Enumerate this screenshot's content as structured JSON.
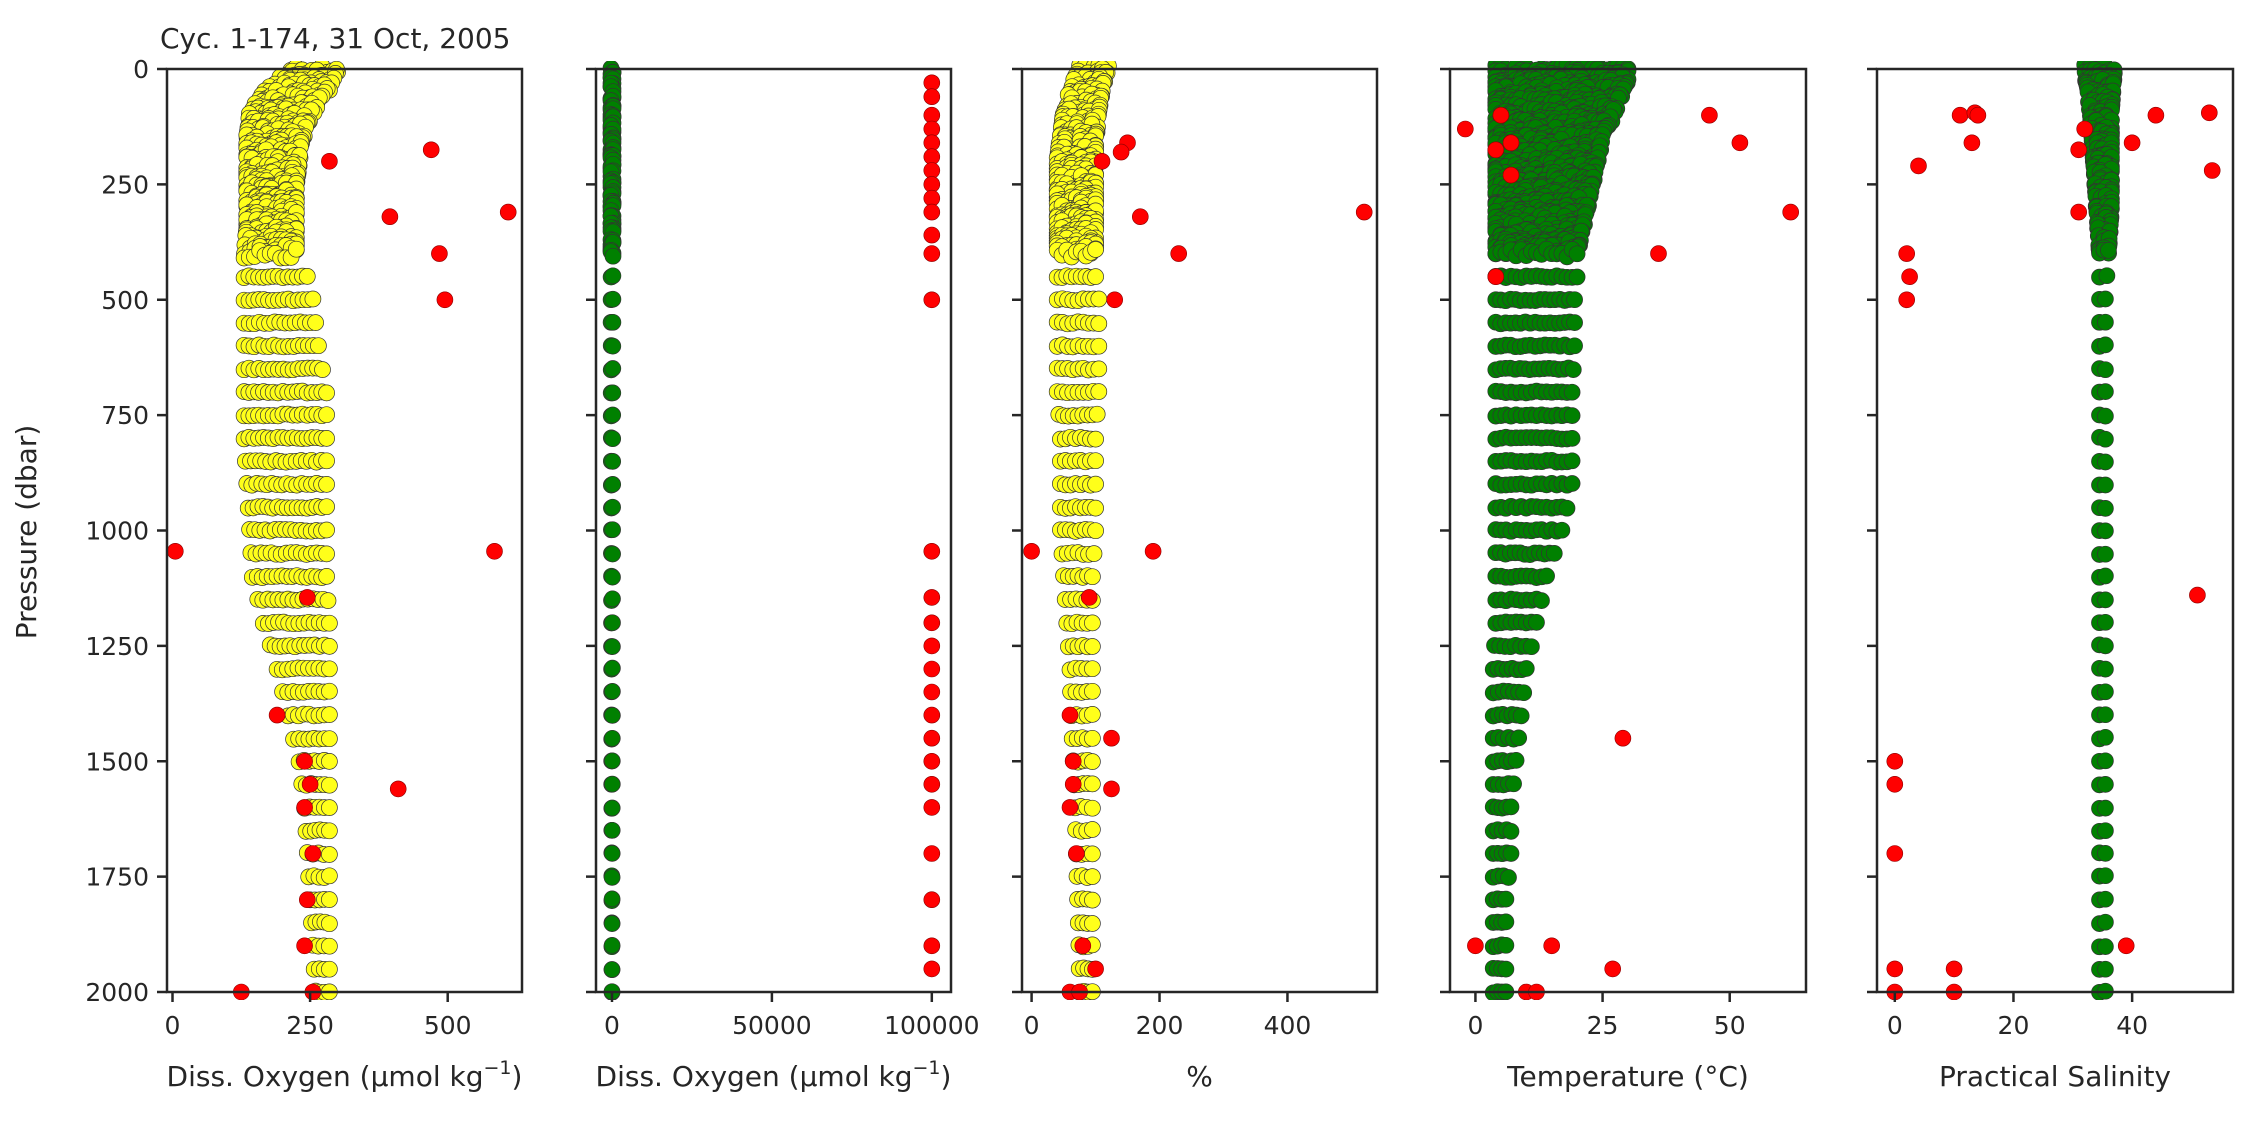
{
  "figure": {
    "title": "Cyc. 1-174, 31 Oct, 2005",
    "ylabel": "Pressure (dbar)",
    "y_ticks": [
      0,
      250,
      500,
      750,
      1000,
      1250,
      1500,
      1750,
      2000
    ],
    "y_tick_labels": [
      "0",
      "250",
      "500",
      "750",
      "1000",
      "1250",
      "1500",
      "1750",
      "2000"
    ]
  },
  "chart_data": [
    {
      "type": "scatter",
      "xlabel_main": "Diss. Oxygen (µmol kg",
      "xlabel_sup": "−1",
      "xlabel_tail": ")",
      "xlim": [
        -10,
        635
      ],
      "ylim": [
        2000,
        0
      ],
      "x_ticks": [
        0,
        250,
        500
      ],
      "x_tick_labels": [
        "0",
        "250",
        "500"
      ],
      "colors": {
        "good": "#ffff1a",
        "bad": "#ff0000"
      },
      "good_profile": {
        "depths": [
          0,
          20,
          50,
          100,
          150,
          200,
          250,
          300,
          350,
          400,
          450,
          500,
          600,
          700,
          800,
          900,
          1000,
          1100,
          1200,
          1300,
          1400,
          1500,
          1600,
          1700,
          1800,
          1900,
          2000
        ],
        "x_min": [
          215,
          200,
          165,
          140,
          135,
          135,
          135,
          135,
          135,
          130,
          130,
          130,
          130,
          130,
          130,
          135,
          140,
          145,
          165,
          190,
          210,
          230,
          240,
          245,
          250,
          255,
          260
        ],
        "x_max": [
          300,
          295,
          280,
          250,
          235,
          230,
          225,
          225,
          225,
          225,
          245,
          255,
          265,
          280,
          280,
          280,
          280,
          280,
          285,
          285,
          285,
          285,
          285,
          285,
          285,
          285,
          285
        ]
      },
      "bad_points": [
        [
          285,
          200
        ],
        [
          470,
          175
        ],
        [
          395,
          320
        ],
        [
          610,
          310
        ],
        [
          485,
          400
        ],
        [
          495,
          500
        ],
        [
          5,
          1045
        ],
        [
          585,
          1045
        ],
        [
          245,
          1145
        ],
        [
          190,
          1400
        ],
        [
          240,
          1500
        ],
        [
          410,
          1560
        ],
        [
          250,
          1550
        ],
        [
          240,
          1600
        ],
        [
          255,
          1700
        ],
        [
          245,
          1800
        ],
        [
          240,
          1900
        ],
        [
          125,
          2000
        ],
        [
          255,
          2000
        ]
      ]
    },
    {
      "type": "scatter",
      "xlabel_main": "Diss. Oxygen (µmol kg",
      "xlabel_sup": "−1",
      "xlabel_tail": ")",
      "xlim": [
        -5000,
        106000
      ],
      "ylim": [
        2000,
        0
      ],
      "x_ticks": [
        0,
        50000,
        100000
      ],
      "x_tick_labels": [
        "0",
        "50000",
        "100000"
      ],
      "colors": {
        "good": "#008000",
        "bad": "#ff0000"
      },
      "good_profile": {
        "depths": [
          0,
          400,
          2000
        ],
        "x_min": [
          -300,
          -300,
          0
        ],
        "x_max": [
          300,
          300,
          0
        ]
      },
      "bad_points": [
        [
          100000,
          30
        ],
        [
          100000,
          60
        ],
        [
          100000,
          100
        ],
        [
          100000,
          130
        ],
        [
          100000,
          160
        ],
        [
          100000,
          190
        ],
        [
          100000,
          220
        ],
        [
          100000,
          250
        ],
        [
          100000,
          280
        ],
        [
          100000,
          310
        ],
        [
          100000,
          360
        ],
        [
          100000,
          400
        ],
        [
          100000,
          500
        ],
        [
          100000,
          1045
        ],
        [
          100000,
          1145
        ],
        [
          100000,
          1200
        ],
        [
          100000,
          1250
        ],
        [
          100000,
          1300
        ],
        [
          100000,
          1350
        ],
        [
          100000,
          1400
        ],
        [
          100000,
          1450
        ],
        [
          100000,
          1500
        ],
        [
          100000,
          1550
        ],
        [
          100000,
          1600
        ],
        [
          100000,
          1700
        ],
        [
          100000,
          1800
        ],
        [
          100000,
          1900
        ],
        [
          100000,
          1950
        ]
      ]
    },
    {
      "type": "scatter",
      "xlabel_main": "%",
      "xlim": [
        -15,
        540
      ],
      "ylim": [
        2000,
        0
      ],
      "x_ticks": [
        0,
        200,
        400
      ],
      "x_tick_labels": [
        "0",
        "200",
        "400"
      ],
      "colors": {
        "good": "#ffff1a",
        "bad": "#ff0000"
      },
      "good_profile": {
        "depths": [
          0,
          20,
          50,
          100,
          150,
          200,
          250,
          300,
          350,
          400,
          450,
          500,
          600,
          700,
          800,
          900,
          1000,
          1100,
          1200,
          1300,
          1400,
          1500,
          1600,
          1700,
          1800,
          1900,
          2000
        ],
        "x_min": [
          75,
          70,
          60,
          50,
          45,
          40,
          40,
          40,
          40,
          40,
          40,
          40,
          40,
          40,
          45,
          45,
          45,
          50,
          55,
          60,
          62,
          65,
          68,
          70,
          72,
          74,
          75
        ],
        "x_max": [
          120,
          115,
          110,
          105,
          100,
          100,
          100,
          100,
          100,
          100,
          100,
          105,
          105,
          105,
          100,
          100,
          100,
          95,
          95,
          95,
          95,
          95,
          95,
          95,
          95,
          95,
          95
        ]
      },
      "bad_points": [
        [
          150,
          160
        ],
        [
          140,
          180
        ],
        [
          110,
          200
        ],
        [
          520,
          310
        ],
        [
          170,
          320
        ],
        [
          230,
          400
        ],
        [
          130,
          500
        ],
        [
          0,
          1045
        ],
        [
          190,
          1045
        ],
        [
          90,
          1145
        ],
        [
          60,
          1400
        ],
        [
          125,
          1450
        ],
        [
          65,
          1500
        ],
        [
          125,
          1560
        ],
        [
          65,
          1550
        ],
        [
          60,
          1600
        ],
        [
          70,
          1700
        ],
        [
          80,
          1900
        ],
        [
          100,
          1950
        ],
        [
          60,
          2000
        ],
        [
          75,
          2000
        ]
      ]
    },
    {
      "type": "scatter",
      "xlabel_main": "Temperature (°C)",
      "xlim": [
        -5,
        65
      ],
      "ylim": [
        2000,
        0
      ],
      "x_ticks": [
        0,
        25,
        50
      ],
      "x_tick_labels": [
        "0",
        "25",
        "50"
      ],
      "colors": {
        "good": "#008000",
        "bad": "#ff0000"
      },
      "good_profile": {
        "depths": [
          0,
          20,
          50,
          100,
          150,
          200,
          250,
          300,
          350,
          400,
          450,
          500,
          600,
          700,
          800,
          900,
          1000,
          1100,
          1200,
          1300,
          1400,
          1500,
          1600,
          1700,
          1800,
          1900,
          2000
        ],
        "x_min": [
          4,
          4,
          4,
          4,
          4,
          4,
          4,
          4,
          4,
          4,
          4,
          4,
          4,
          4,
          4,
          4,
          4,
          4,
          4,
          3.5,
          3.5,
          3.5,
          3.5,
          3.5,
          3.5,
          3.5,
          3.5
        ],
        "x_max": [
          30,
          30,
          29,
          27,
          25,
          24,
          23,
          22,
          21,
          20,
          20,
          19.5,
          19.5,
          19,
          19,
          19,
          17,
          14,
          12,
          10,
          9,
          8,
          7,
          7,
          6,
          6,
          6
        ]
      },
      "bad_points": [
        [
          -2,
          130
        ],
        [
          4,
          175
        ],
        [
          5,
          100
        ],
        [
          7,
          160
        ],
        [
          7,
          230
        ],
        [
          46,
          100
        ],
        [
          52,
          160
        ],
        [
          62,
          310
        ],
        [
          36,
          400
        ],
        [
          4,
          450
        ],
        [
          29,
          1450
        ],
        [
          0,
          1900
        ],
        [
          15,
          1900
        ],
        [
          27,
          1950
        ],
        [
          10,
          2000
        ],
        [
          12,
          2000
        ]
      ]
    },
    {
      "type": "scatter",
      "xlabel_main": "Practical Salinity",
      "xlim": [
        -3,
        57
      ],
      "ylim": [
        2000,
        0
      ],
      "x_ticks": [
        0,
        20,
        40
      ],
      "x_tick_labels": [
        "0",
        "20",
        "40"
      ],
      "colors": {
        "good": "#008000",
        "bad": "#ff0000"
      },
      "good_profile": {
        "depths": [
          0,
          100,
          200,
          300,
          400,
          500,
          2000
        ],
        "x_min": [
          32,
          33,
          33.5,
          34,
          34.5,
          34.5,
          34.5
        ],
        "x_max": [
          37,
          36.5,
          36.5,
          36.5,
          36,
          35.5,
          35.5
        ]
      },
      "bad_points": [
        [
          11,
          100
        ],
        [
          13.5,
          95
        ],
        [
          14,
          100
        ],
        [
          44,
          100
        ],
        [
          53,
          95
        ],
        [
          32,
          130
        ],
        [
          13,
          160
        ],
        [
          40,
          160
        ],
        [
          31,
          175
        ],
        [
          4,
          210
        ],
        [
          53.5,
          220
        ],
        [
          31,
          310
        ],
        [
          2,
          400
        ],
        [
          2.5,
          450
        ],
        [
          2,
          500
        ],
        [
          51,
          1140
        ],
        [
          0,
          1500
        ],
        [
          0,
          1550
        ],
        [
          0,
          1700
        ],
        [
          39,
          1900
        ],
        [
          0,
          1950
        ],
        [
          10,
          1950
        ],
        [
          0,
          2000
        ],
        [
          10,
          2000
        ]
      ]
    }
  ]
}
